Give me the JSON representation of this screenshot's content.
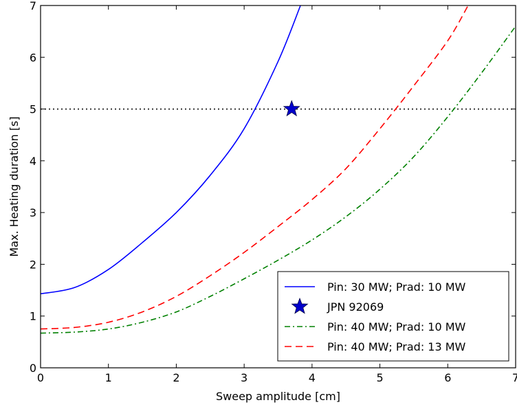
{
  "chart_data": {
    "type": "line",
    "xlabel": "Sweep amplitude [cm]",
    "ylabel": "Max. Heating duration [s]",
    "xlim": [
      0,
      7
    ],
    "ylim": [
      0,
      7
    ],
    "xticks": [
      "0",
      "1",
      "2",
      "3",
      "4",
      "5",
      "6",
      "7"
    ],
    "yticks": [
      "0",
      "1",
      "2",
      "3",
      "4",
      "5",
      "6",
      "7"
    ],
    "grid": false,
    "legend_position": "lower-right",
    "series": [
      {
        "name": "Pin: 30 MW; Prad: 10 MW",
        "style": "solid",
        "color": "#0000ff",
        "x": [
          0,
          0.5,
          1,
          1.5,
          2,
          2.5,
          3,
          3.5,
          3.83
        ],
        "y": [
          1.43,
          1.55,
          1.9,
          2.42,
          3.0,
          3.72,
          4.62,
          5.92,
          7.0
        ]
      },
      {
        "name": "JPN 92069",
        "style": "marker-star",
        "color": "#0000cc",
        "x": [
          3.7
        ],
        "y": [
          5.0
        ]
      },
      {
        "name": "Pin: 40 MW; Prad: 10 MW",
        "style": "dashdot",
        "color": "#008000",
        "x": [
          0,
          0.5,
          1,
          1.5,
          2,
          2.5,
          3,
          3.5,
          4,
          4.5,
          5,
          5.5,
          6,
          6.5,
          7
        ],
        "y": [
          0.67,
          0.69,
          0.75,
          0.88,
          1.08,
          1.38,
          1.72,
          2.08,
          2.47,
          2.92,
          3.45,
          4.08,
          4.85,
          5.7,
          6.6
        ]
      },
      {
        "name": "Pin: 40 MW; Prad: 13 MW",
        "style": "dashed",
        "color": "#ff0000",
        "x": [
          0,
          0.5,
          1,
          1.5,
          2,
          2.5,
          3,
          3.5,
          4,
          4.5,
          5,
          5.5,
          6,
          6.3
        ],
        "y": [
          0.75,
          0.78,
          0.88,
          1.08,
          1.38,
          1.78,
          2.23,
          2.73,
          3.25,
          3.85,
          4.62,
          5.45,
          6.32,
          7.0
        ]
      }
    ],
    "reference_lines": [
      {
        "orientation": "horizontal",
        "y": 5,
        "style": "dotted",
        "color": "#000000"
      }
    ]
  }
}
